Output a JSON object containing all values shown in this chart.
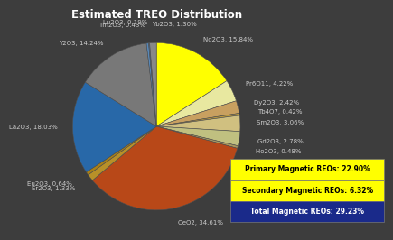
{
  "title": "Estimated TREO Distribution",
  "background_color": "#3d3d3d",
  "title_color": "#ffffff",
  "labels": [
    "Nd2O3",
    "Pr6O11",
    "Dy2O3",
    "Tb4O7",
    "Sm2O3",
    "Gd2O3",
    "Ho2O3",
    "CeO2",
    "Er2O3",
    "Eu2O3",
    "La2O3",
    "Y2O3",
    "Tm2O3",
    "Lu2O3",
    "Yb2O3"
  ],
  "values": [
    15.84,
    4.22,
    2.42,
    0.42,
    3.06,
    2.78,
    0.48,
    34.61,
    1.33,
    0.64,
    18.03,
    14.24,
    0.43,
    0.19,
    1.3
  ],
  "colors": [
    "#ffff00",
    "#e8e8a0",
    "#c8a060",
    "#b89840",
    "#d0c080",
    "#c0c080",
    "#a89860",
    "#b84818",
    "#b89028",
    "#a88018",
    "#2868a8",
    "#787878",
    "#5888b8",
    "#4878a8",
    "#888888"
  ],
  "label_display": [
    "Nd2O3, 15.84%",
    "Pr6O11, 4.22%",
    "Dy2O3, 2.42%",
    "Tb4O7, 0.42%",
    "Sm2O3, 3.06%",
    "Gd2O3, 2.78%",
    "Ho2O3, 0.48%",
    "CeO2, 34.61%",
    "Er2O3, 1.33%",
    "Eu2O3, 0.64%",
    "La2O3, 18.03%",
    "Y2O3, 14.24%",
    "Tm2O3, 0.43%",
    "Lu2O3, 0.19%",
    "Yb2O3, 1.30%"
  ],
  "label_color": "#cccccc",
  "label_fontsize": 5.0,
  "title_fontsize": 8.5,
  "legend": {
    "primary": "Primary Magnetic REOs: 22.90%",
    "secondary": "Secondary Magnetic REOs: 6.32%",
    "total": "Total Magnetic REOs: 29.23%",
    "primary_bg": "#ffff00",
    "secondary_bg": "#ffff00",
    "total_bg": "#1a2a8a",
    "text_dark": "#000000",
    "text_light": "#ffffff",
    "fontsize": 5.5
  }
}
